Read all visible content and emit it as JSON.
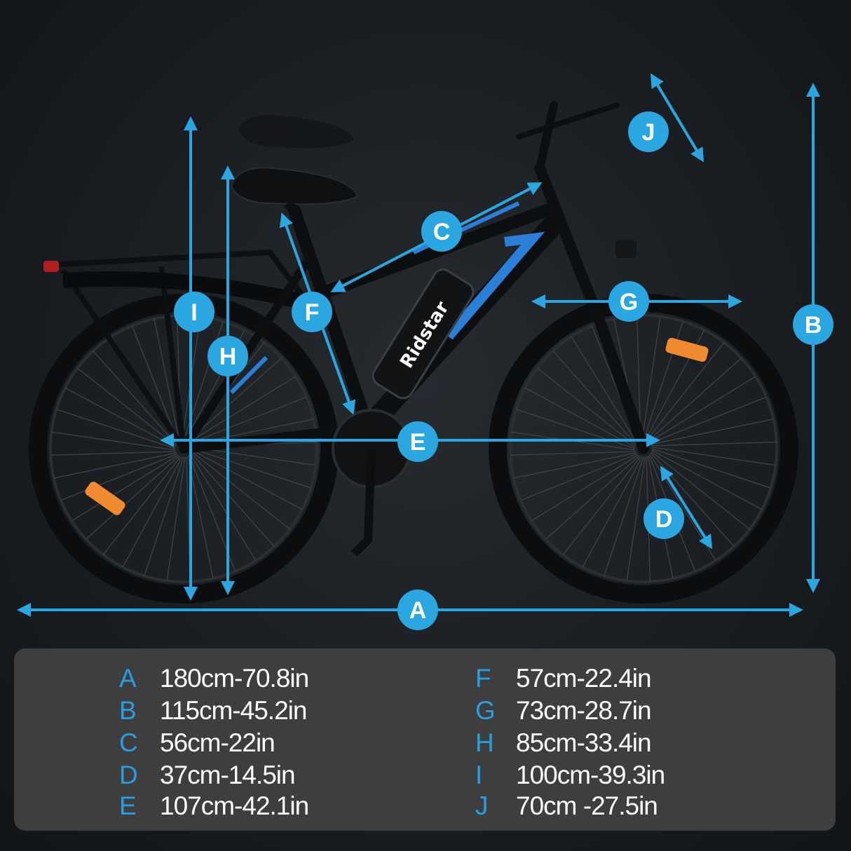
{
  "brand": "Ridstar",
  "colors": {
    "accent": "#2aa6e0",
    "background": "#1b1f23",
    "panel": "#3e3e3f",
    "text": "#ffffff"
  },
  "dimensions": [
    {
      "letter": "A",
      "value": "180cm-70.8in"
    },
    {
      "letter": "B",
      "value": "115cm-45.2in"
    },
    {
      "letter": "C",
      "value": "56cm-22in"
    },
    {
      "letter": "D",
      "value": "37cm-14.5in"
    },
    {
      "letter": "E",
      "value": "107cm-42.1in"
    },
    {
      "letter": "F",
      "value": "57cm-22.4in"
    },
    {
      "letter": "G",
      "value": "73cm-28.7in"
    },
    {
      "letter": "H",
      "value": "85cm-33.4in"
    },
    {
      "letter": "I",
      "value": "100cm-39.3in"
    },
    {
      "letter": "J",
      "value": "70cm -27.5in"
    }
  ]
}
